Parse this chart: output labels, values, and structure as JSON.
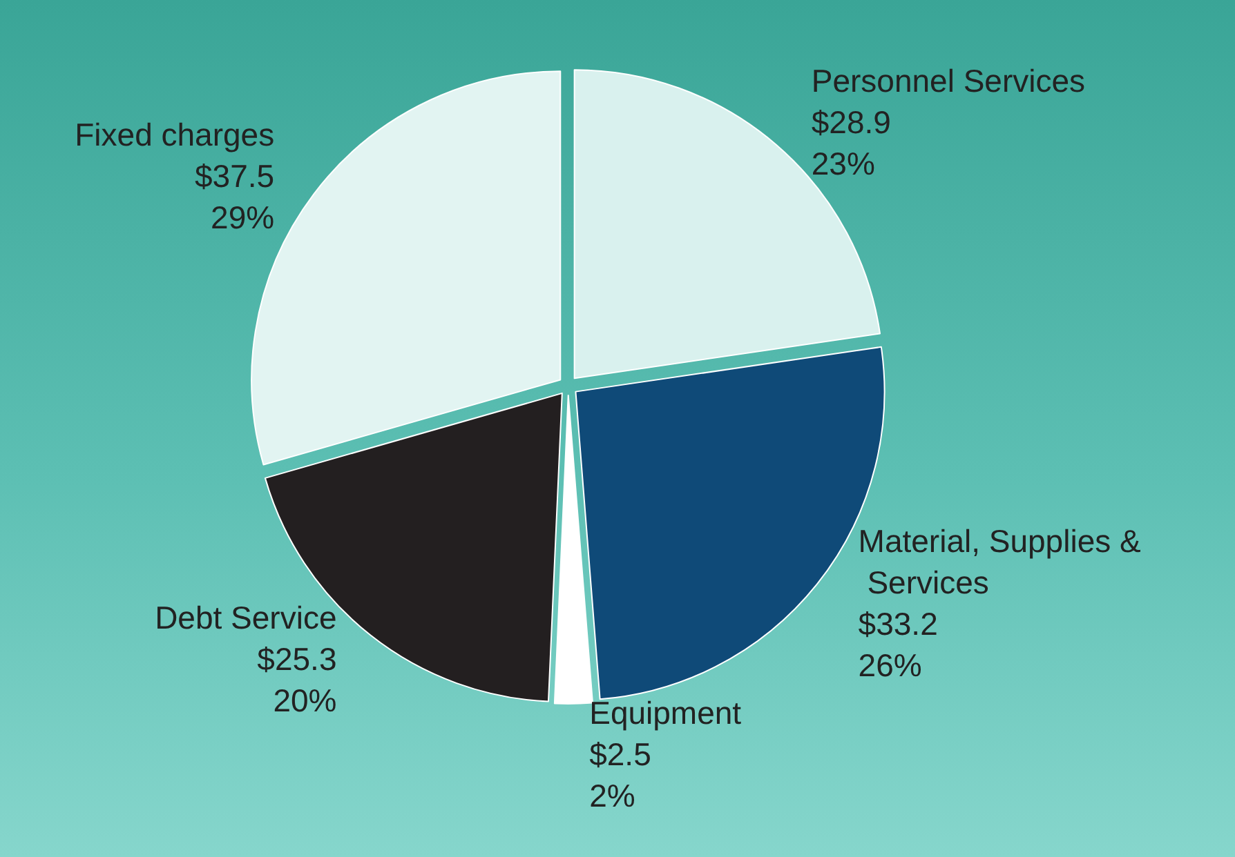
{
  "chart_data": {
    "type": "pie",
    "categories": [
      "Personnel Services",
      "Material, Supplies & Services",
      "Equipment",
      "Debt Service",
      "Fixed charges"
    ],
    "values": [
      28.9,
      33.2,
      2.5,
      25.3,
      37.5
    ],
    "value_labels": [
      "$28.9\n23%",
      "$33.2\n26%",
      "$2.5\n2%",
      "$25.3\n20%",
      "$37.5\n29%"
    ],
    "colors": [
      "#d9f1ee",
      "#0f4a78",
      "#ffffff",
      "#231f20",
      "#e2f4f2"
    ],
    "legend": false
  }
}
